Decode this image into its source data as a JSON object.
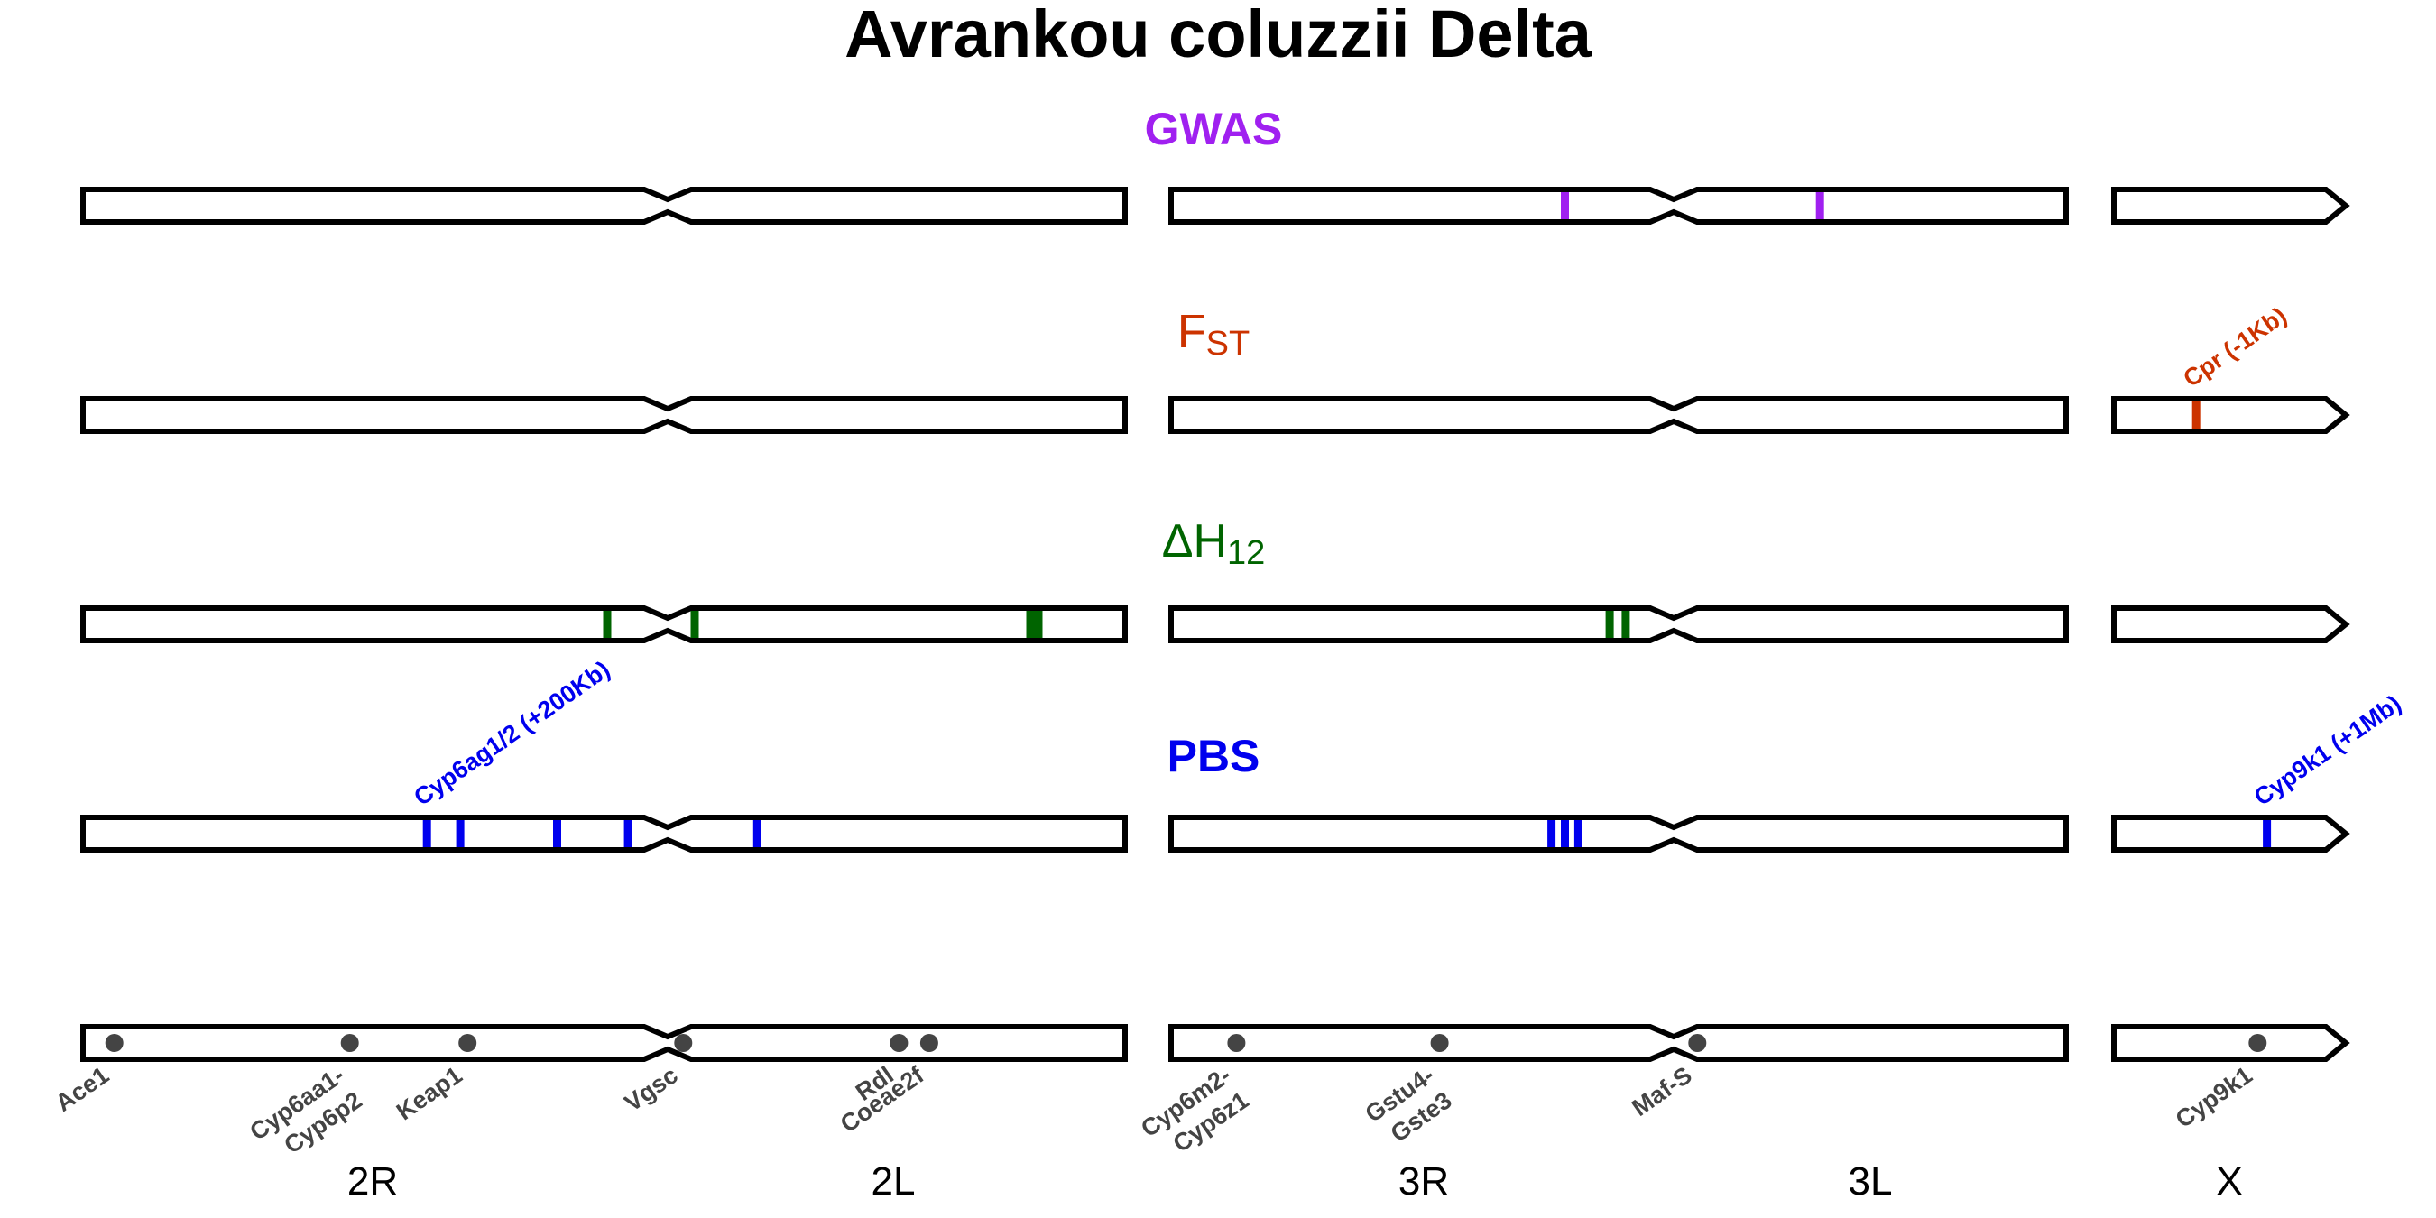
{
  "title": "Avrankou coluzzii Delta",
  "colors": {
    "gwas": "#a020f0",
    "fst": "#cc3300",
    "h12": "#006400",
    "pbs": "#0000ee",
    "gene": "#444444",
    "outline": "#000000"
  },
  "chromosomes": [
    {
      "name": "2",
      "arms": [
        "2R",
        "2L"
      ]
    },
    {
      "name": "3",
      "arms": [
        "3R",
        "3L"
      ]
    },
    {
      "name": "X",
      "arms": [
        "X"
      ]
    }
  ],
  "arm_labels": [
    "2R",
    "2L",
    "3R",
    "3L",
    "X"
  ],
  "panels": [
    {
      "key": "gwas",
      "title_main": "GWAS",
      "title_sub": "",
      "bold": true,
      "hits": [
        {
          "chrom": "3",
          "pos": 0.44,
          "width": 1
        },
        {
          "chrom": "3",
          "pos": 0.725,
          "width": 1
        }
      ],
      "annotations": []
    },
    {
      "key": "fst",
      "title_main": "F",
      "title_sub": "ST",
      "bold": false,
      "hits": [
        {
          "chrom": "X",
          "pos": 0.355,
          "width": 1
        }
      ],
      "annotations": [
        {
          "chrom": "X",
          "pos": 0.355,
          "text": "Cpr (-1Kb)"
        }
      ]
    },
    {
      "key": "h12",
      "title_main": "ΔH",
      "title_sub": "12",
      "bold": false,
      "hits": [
        {
          "chrom": "2",
          "pos": 0.503,
          "width": 1
        },
        {
          "chrom": "2",
          "pos": 0.587,
          "width": 1
        },
        {
          "chrom": "2",
          "pos": 0.913,
          "width": 2
        },
        {
          "chrom": "3",
          "pos": 0.49,
          "width": 1
        },
        {
          "chrom": "3",
          "pos": 0.508,
          "width": 1
        }
      ],
      "annotations": []
    },
    {
      "key": "pbs",
      "title_main": "PBS",
      "title_sub": "",
      "bold": true,
      "hits": [
        {
          "chrom": "2",
          "pos": 0.33,
          "width": 1
        },
        {
          "chrom": "2",
          "pos": 0.362,
          "width": 1
        },
        {
          "chrom": "2",
          "pos": 0.455,
          "width": 1
        },
        {
          "chrom": "2",
          "pos": 0.523,
          "width": 1
        },
        {
          "chrom": "2",
          "pos": 0.647,
          "width": 1
        },
        {
          "chrom": "3",
          "pos": 0.425,
          "width": 1
        },
        {
          "chrom": "3",
          "pos": 0.44,
          "width": 1
        },
        {
          "chrom": "3",
          "pos": 0.455,
          "width": 1
        },
        {
          "chrom": "X",
          "pos": 0.66,
          "width": 1
        }
      ],
      "annotations": [
        {
          "chrom": "2",
          "pos": 0.33,
          "text": "Cyp6ag1/2 (+200Kb)"
        },
        {
          "chrom": "X",
          "pos": 0.66,
          "text": "Cyp9k1 (+1Mb)"
        }
      ]
    }
  ],
  "genes": [
    {
      "chrom": "2",
      "pos": 0.03,
      "label": [
        "Ace1"
      ]
    },
    {
      "chrom": "2",
      "pos": 0.256,
      "label": [
        "Cyp6aa1-",
        "Cyp6p2"
      ]
    },
    {
      "chrom": "2",
      "pos": 0.369,
      "label": [
        "Keap1"
      ]
    },
    {
      "chrom": "2",
      "pos": 0.576,
      "label": [
        "Vgsc"
      ]
    },
    {
      "chrom": "2",
      "pos": 0.783,
      "label": [
        "Rdl"
      ]
    },
    {
      "chrom": "2",
      "pos": 0.812,
      "label": [
        "Coeae2f"
      ]
    },
    {
      "chrom": "3",
      "pos": 0.073,
      "label": [
        "Cyp6m2-",
        "Cyp6z1"
      ]
    },
    {
      "chrom": "3",
      "pos": 0.3,
      "label": [
        "Gstu4-",
        "Gste3"
      ]
    },
    {
      "chrom": "3",
      "pos": 0.588,
      "label": [
        "Maf-S"
      ]
    },
    {
      "chrom": "X",
      "pos": 0.62,
      "label": [
        "Cyp9k1"
      ]
    }
  ]
}
